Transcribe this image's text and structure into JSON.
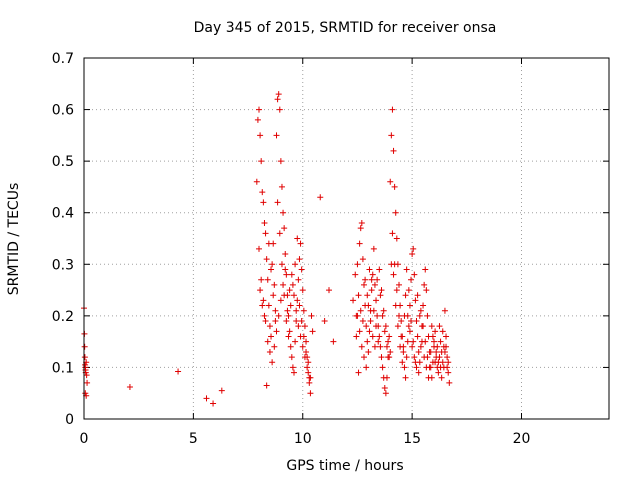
{
  "chart_data": {
    "type": "scatter",
    "title": "Day 345 of 2015, SRMTID for receiver onsa",
    "xlabel": "GPS time / hours",
    "ylabel": "SRMTID / TECUs",
    "xlim": [
      0,
      24
    ],
    "ylim": [
      0,
      0.7
    ],
    "xticks": [
      0,
      5,
      10,
      15,
      20
    ],
    "xtick_labels": [
      "0",
      "5",
      "10",
      "15",
      "20"
    ],
    "yticks": [
      0,
      0.1,
      0.2,
      0.3,
      0.4,
      0.5,
      0.6,
      0.7
    ],
    "ytick_labels": [
      "0",
      "0.1",
      "0.2",
      "0.3",
      "0.4",
      "0.5",
      "0.6",
      "0.7"
    ],
    "grid": true,
    "marker": "+",
    "color": "#e00000",
    "series": [
      {
        "name": "onsa",
        "points": [
          [
            0.0,
            0.215
          ],
          [
            0.02,
            0.165
          ],
          [
            0.03,
            0.14
          ],
          [
            0.04,
            0.12
          ],
          [
            0.05,
            0.105
          ],
          [
            0.06,
            0.1
          ],
          [
            0.07,
            0.095
          ],
          [
            0.08,
            0.09
          ],
          [
            0.1,
            0.11
          ],
          [
            0.12,
            0.085
          ],
          [
            0.14,
            0.07
          ],
          [
            0.06,
            0.05
          ],
          [
            0.1,
            0.045
          ],
          [
            2.1,
            0.062
          ],
          [
            4.3,
            0.092
          ],
          [
            5.6,
            0.04
          ],
          [
            5.9,
            0.03
          ],
          [
            6.3,
            0.055
          ],
          [
            7.9,
            0.46
          ],
          [
            7.95,
            0.58
          ],
          [
            8.0,
            0.6
          ],
          [
            8.05,
            0.55
          ],
          [
            8.1,
            0.5
          ],
          [
            8.15,
            0.44
          ],
          [
            8.2,
            0.42
          ],
          [
            8.25,
            0.38
          ],
          [
            8.3,
            0.36
          ],
          [
            8.35,
            0.31
          ],
          [
            8.4,
            0.27
          ],
          [
            8.45,
            0.22
          ],
          [
            8.5,
            0.18
          ],
          [
            8.55,
            0.16
          ],
          [
            8.6,
            0.3
          ],
          [
            8.65,
            0.34
          ],
          [
            8.7,
            0.26
          ],
          [
            8.75,
            0.21
          ],
          [
            8.8,
            0.55
          ],
          [
            8.85,
            0.62
          ],
          [
            8.9,
            0.63
          ],
          [
            8.95,
            0.6
          ],
          [
            9.0,
            0.5
          ],
          [
            9.05,
            0.45
          ],
          [
            9.1,
            0.4
          ],
          [
            9.15,
            0.37
          ],
          [
            9.2,
            0.32
          ],
          [
            9.25,
            0.28
          ],
          [
            9.3,
            0.24
          ],
          [
            9.35,
            0.2
          ],
          [
            9.4,
            0.17
          ],
          [
            9.45,
            0.14
          ],
          [
            9.5,
            0.12
          ],
          [
            9.55,
            0.1
          ],
          [
            9.6,
            0.09
          ],
          [
            9.65,
            0.15
          ],
          [
            9.7,
            0.19
          ],
          [
            9.75,
            0.23
          ],
          [
            9.8,
            0.27
          ],
          [
            9.85,
            0.31
          ],
          [
            9.9,
            0.34
          ],
          [
            9.95,
            0.29
          ],
          [
            10.0,
            0.25
          ],
          [
            10.05,
            0.21
          ],
          [
            10.1,
            0.18
          ],
          [
            10.15,
            0.15
          ],
          [
            10.2,
            0.12
          ],
          [
            10.25,
            0.09
          ],
          [
            10.3,
            0.07
          ],
          [
            10.35,
            0.05
          ],
          [
            10.4,
            0.2
          ],
          [
            10.45,
            0.17
          ],
          [
            8.0,
            0.33
          ],
          [
            8.1,
            0.27
          ],
          [
            8.2,
            0.23
          ],
          [
            8.3,
            0.19
          ],
          [
            8.4,
            0.15
          ],
          [
            8.5,
            0.13
          ],
          [
            8.6,
            0.11
          ],
          [
            8.7,
            0.14
          ],
          [
            8.8,
            0.17
          ],
          [
            8.9,
            0.2
          ],
          [
            9.0,
            0.23
          ],
          [
            9.1,
            0.26
          ],
          [
            9.2,
            0.29
          ],
          [
            9.3,
            0.21
          ],
          [
            9.4,
            0.25
          ],
          [
            9.5,
            0.28
          ],
          [
            9.6,
            0.24
          ],
          [
            9.7,
            0.21
          ],
          [
            9.8,
            0.18
          ],
          [
            9.9,
            0.16
          ],
          [
            10.0,
            0.14
          ],
          [
            10.1,
            0.12
          ],
          [
            10.2,
            0.1
          ],
          [
            10.3,
            0.08
          ],
          [
            8.05,
            0.25
          ],
          [
            8.15,
            0.22
          ],
          [
            8.25,
            0.2
          ],
          [
            8.35,
            0.065
          ],
          [
            8.45,
            0.34
          ],
          [
            8.55,
            0.29
          ],
          [
            8.65,
            0.24
          ],
          [
            8.75,
            0.19
          ],
          [
            8.85,
            0.42
          ],
          [
            8.95,
            0.36
          ],
          [
            9.05,
            0.3
          ],
          [
            9.15,
            0.24
          ],
          [
            9.25,
            0.19
          ],
          [
            9.35,
            0.16
          ],
          [
            9.45,
            0.22
          ],
          [
            9.55,
            0.26
          ],
          [
            9.65,
            0.3
          ],
          [
            9.75,
            0.35
          ],
          [
            9.85,
            0.22
          ],
          [
            9.95,
            0.19
          ],
          [
            10.05,
            0.16
          ],
          [
            10.15,
            0.13
          ],
          [
            10.25,
            0.11
          ],
          [
            10.35,
            0.08
          ],
          [
            10.8,
            0.43
          ],
          [
            11.0,
            0.19
          ],
          [
            11.2,
            0.25
          ],
          [
            11.4,
            0.15
          ],
          [
            12.3,
            0.23
          ],
          [
            12.4,
            0.28
          ],
          [
            12.45,
            0.2
          ],
          [
            12.5,
            0.3
          ],
          [
            12.55,
            0.24
          ],
          [
            12.6,
            0.34
          ],
          [
            12.65,
            0.37
          ],
          [
            12.7,
            0.38
          ],
          [
            12.75,
            0.31
          ],
          [
            12.8,
            0.26
          ],
          [
            12.85,
            0.22
          ],
          [
            12.9,
            0.18
          ],
          [
            12.95,
            0.15
          ],
          [
            13.0,
            0.13
          ],
          [
            13.05,
            0.17
          ],
          [
            13.1,
            0.21
          ],
          [
            13.15,
            0.25
          ],
          [
            13.2,
            0.28
          ],
          [
            13.25,
            0.33
          ],
          [
            13.3,
            0.26
          ],
          [
            13.35,
            0.23
          ],
          [
            13.4,
            0.2
          ],
          [
            13.45,
            0.18
          ],
          [
            13.5,
            0.16
          ],
          [
            13.55,
            0.14
          ],
          [
            13.6,
            0.12
          ],
          [
            13.65,
            0.1
          ],
          [
            13.7,
            0.08
          ],
          [
            13.75,
            0.06
          ],
          [
            13.8,
            0.05
          ],
          [
            13.85,
            0.08
          ],
          [
            13.9,
            0.12
          ],
          [
            13.95,
            0.16
          ],
          [
            14.0,
            0.46
          ],
          [
            14.05,
            0.55
          ],
          [
            14.1,
            0.6
          ],
          [
            14.15,
            0.52
          ],
          [
            14.2,
            0.45
          ],
          [
            14.25,
            0.4
          ],
          [
            14.3,
            0.35
          ],
          [
            14.35,
            0.3
          ],
          [
            14.4,
            0.26
          ],
          [
            14.45,
            0.22
          ],
          [
            14.5,
            0.19
          ],
          [
            14.55,
            0.16
          ],
          [
            14.6,
            0.13
          ],
          [
            14.65,
            0.1
          ],
          [
            14.7,
            0.08
          ],
          [
            14.75,
            0.12
          ],
          [
            14.8,
            0.15
          ],
          [
            14.85,
            0.18
          ],
          [
            14.9,
            0.22
          ],
          [
            14.95,
            0.27
          ],
          [
            15.0,
            0.32
          ],
          [
            15.05,
            0.33
          ],
          [
            15.1,
            0.28
          ],
          [
            15.15,
            0.23
          ],
          [
            15.2,
            0.19
          ],
          [
            15.25,
            0.16
          ],
          [
            15.3,
            0.13
          ],
          [
            15.35,
            0.11
          ],
          [
            15.4,
            0.14
          ],
          [
            15.45,
            0.18
          ],
          [
            15.5,
            0.22
          ],
          [
            15.55,
            0.26
          ],
          [
            15.6,
            0.29
          ],
          [
            15.65,
            0.25
          ],
          [
            15.7,
            0.2
          ],
          [
            15.75,
            0.16
          ],
          [
            15.8,
            0.13
          ],
          [
            15.85,
            0.1
          ],
          [
            15.9,
            0.08
          ],
          [
            15.95,
            0.11
          ],
          [
            16.0,
            0.14
          ],
          [
            16.05,
            0.17
          ],
          [
            16.1,
            0.12
          ],
          [
            16.15,
            0.1
          ],
          [
            16.2,
            0.09
          ],
          [
            16.25,
            0.12
          ],
          [
            16.3,
            0.15
          ],
          [
            16.35,
            0.13
          ],
          [
            16.4,
            0.11
          ],
          [
            16.45,
            0.14
          ],
          [
            16.5,
            0.21
          ],
          [
            16.55,
            0.16
          ],
          [
            16.6,
            0.12
          ],
          [
            16.65,
            0.09
          ],
          [
            16.7,
            0.07
          ],
          [
            12.5,
            0.2
          ],
          [
            12.6,
            0.17
          ],
          [
            12.7,
            0.14
          ],
          [
            12.8,
            0.12
          ],
          [
            12.9,
            0.1
          ],
          [
            13.0,
            0.22
          ],
          [
            13.1,
            0.19
          ],
          [
            13.2,
            0.16
          ],
          [
            13.3,
            0.14
          ],
          [
            13.4,
            0.27
          ],
          [
            13.5,
            0.29
          ],
          [
            13.6,
            0.25
          ],
          [
            13.7,
            0.21
          ],
          [
            13.8,
            0.18
          ],
          [
            13.9,
            0.15
          ],
          [
            14.0,
            0.13
          ],
          [
            14.1,
            0.36
          ],
          [
            14.2,
            0.3
          ],
          [
            14.3,
            0.25
          ],
          [
            14.4,
            0.2
          ],
          [
            14.5,
            0.16
          ],
          [
            14.6,
            0.14
          ],
          [
            14.7,
            0.24
          ],
          [
            14.8,
            0.2
          ],
          [
            14.9,
            0.17
          ],
          [
            15.0,
            0.14
          ],
          [
            15.1,
            0.12
          ],
          [
            15.2,
            0.1
          ],
          [
            15.3,
            0.09
          ],
          [
            15.4,
            0.21
          ],
          [
            15.5,
            0.18
          ],
          [
            15.6,
            0.15
          ],
          [
            15.7,
            0.12
          ],
          [
            15.8,
            0.1
          ],
          [
            15.9,
            0.18
          ],
          [
            16.0,
            0.15
          ],
          [
            16.1,
            0.13
          ],
          [
            16.2,
            0.11
          ],
          [
            16.3,
            0.1
          ],
          [
            16.4,
            0.17
          ],
          [
            16.5,
            0.13
          ],
          [
            16.6,
            0.1
          ],
          [
            12.45,
            0.16
          ],
          [
            12.55,
            0.09
          ],
          [
            12.65,
            0.21
          ],
          [
            12.75,
            0.19
          ],
          [
            12.85,
            0.27
          ],
          [
            12.95,
            0.24
          ],
          [
            13.05,
            0.29
          ],
          [
            13.15,
            0.27
          ],
          [
            13.25,
            0.21
          ],
          [
            13.35,
            0.18
          ],
          [
            13.45,
            0.15
          ],
          [
            13.55,
            0.24
          ],
          [
            13.65,
            0.2
          ],
          [
            13.75,
            0.17
          ],
          [
            13.85,
            0.14
          ],
          [
            13.95,
            0.12
          ],
          [
            14.05,
            0.3
          ],
          [
            14.15,
            0.28
          ],
          [
            14.25,
            0.22
          ],
          [
            14.35,
            0.18
          ],
          [
            14.45,
            0.14
          ],
          [
            14.55,
            0.11
          ],
          [
            14.65,
            0.2
          ],
          [
            14.75,
            0.29
          ],
          [
            14.85,
            0.25
          ],
          [
            14.95,
            0.19
          ],
          [
            15.05,
            0.15
          ],
          [
            15.15,
            0.11
          ],
          [
            15.25,
            0.24
          ],
          [
            15.35,
            0.2
          ],
          [
            15.45,
            0.15
          ],
          [
            15.55,
            0.12
          ],
          [
            15.65,
            0.1
          ],
          [
            15.75,
            0.08
          ],
          [
            15.85,
            0.13
          ],
          [
            15.95,
            0.16
          ],
          [
            16.05,
            0.11
          ],
          [
            16.15,
            0.14
          ],
          [
            16.25,
            0.18
          ],
          [
            16.35,
            0.08
          ],
          [
            16.45,
            0.1
          ],
          [
            16.55,
            0.14
          ],
          [
            16.65,
            0.11
          ]
        ]
      }
    ]
  }
}
